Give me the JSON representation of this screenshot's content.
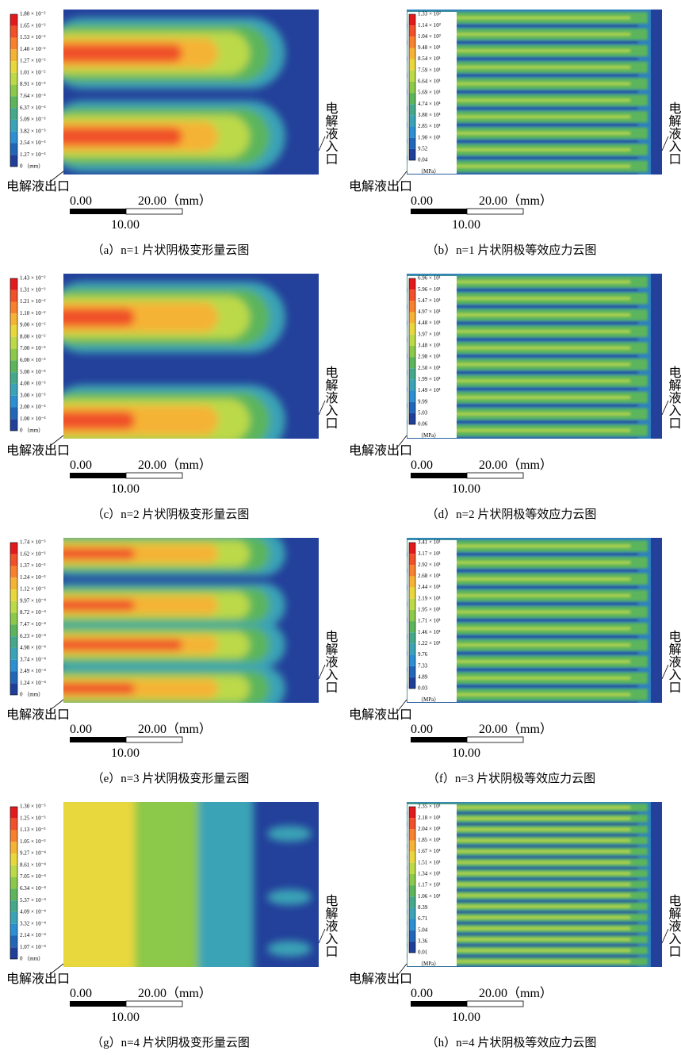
{
  "panels": [
    {
      "legend": [
        "1.80 × 10⁻²",
        "1.65 × 10⁻²",
        "1.53 × 10⁻²",
        "1.40 × 10⁻²",
        "1.27 × 10⁻²",
        "1.01 × 10⁻²",
        "8.91 × 10⁻³",
        "7.64 × 10⁻³",
        "6.37 × 10⁻³",
        "5.09 × 10⁻³",
        "3.82 × 10⁻³",
        "2.54 × 10⁻³",
        "1.27 × 10⁻³",
        "0 （mm）"
      ],
      "outlet": "电解液出口",
      "inlet": "电解液入口",
      "scale_start": "0.00",
      "scale_end": "20.00（mm）",
      "scale_mid": "10.00",
      "caption": "（a）n=1 片状阴极变形量云图"
    },
    {
      "legend": [
        "1.33 × 10²",
        "1.14 × 10²",
        "1.04 × 10²",
        "9.48 × 10¹",
        "8.54 × 10¹",
        "7.59 × 10¹",
        "6.64 × 10¹",
        "5.69 × 10¹",
        "4.74 × 10¹",
        "3.80 × 10¹",
        "2.85 × 10¹",
        "1.90 × 10¹",
        "9.52",
        "0.04",
        "（MPa）"
      ],
      "outlet": "电解液出口",
      "inlet": "电解液入口",
      "scale_start": "0.00",
      "scale_end": "20.00（mm）",
      "scale_mid": "10.00",
      "caption": "（b）n=1 片状阴极等效应力云图"
    },
    {
      "legend": [
        "1.43 × 10⁻²",
        "1.31 × 10⁻²",
        "1.21 × 10⁻²",
        "1.10 × 10⁻²",
        "9.00 × 10⁻²",
        "8.00 × 10⁻²",
        "7.00 × 10⁻³",
        "6.00 × 10⁻³",
        "5.00 × 10⁻³",
        "4.00 × 10⁻³",
        "3.00 × 10⁻³",
        "2.00 × 10⁻³",
        "1.00 × 10⁻³",
        "0 （mm）"
      ],
      "outlet": "电解液出口",
      "inlet": "电解液入口",
      "scale_start": "0.00",
      "scale_end": "20.00（mm）",
      "scale_mid": "10.00",
      "caption": "（c）n=2 片状阴极变形量云图"
    },
    {
      "legend": [
        "6.96 × 10¹",
        "5.96 × 10¹",
        "5.47 × 10¹",
        "4.97 × 10¹",
        "4.48 × 10¹",
        "3.97 × 10¹",
        "3.48 × 10¹",
        "2.98 × 10¹",
        "2.50 × 10¹",
        "1.99 × 10¹",
        "1.49 × 10¹",
        "9.99",
        "5.03",
        "0.06",
        "（MPa）"
      ],
      "outlet": "电解液出口",
      "inlet": "电解液入口",
      "scale_start": "0.00",
      "scale_end": "20.00（mm）",
      "scale_mid": "10.00",
      "caption": "（d）n=2 片状阴极等效应力云图"
    },
    {
      "legend": [
        "1.74 × 10⁻³",
        "1.62 × 10⁻³",
        "1.37 × 10⁻³",
        "1.24 × 10⁻³",
        "1.12 × 10⁻³",
        "9.97 × 10⁻⁴",
        "8.72 × 10⁻⁴",
        "7.47 × 10⁻⁴",
        "6.23 × 10⁻⁴",
        "4.98 × 10⁻⁴",
        "3.74 × 10⁻⁴",
        "2.49 × 10⁻⁴",
        "1.24 × 10⁻⁴",
        "0 （mm）"
      ],
      "outlet": "电解液出口",
      "inlet": "电解液入口",
      "scale_start": "0.00",
      "scale_end": "20.00（mm）",
      "scale_mid": "10.00",
      "caption": "（e）n=3 片状阴极变形量云图"
    },
    {
      "legend": [
        "3.41 × 10¹",
        "3.17 × 10¹",
        "2.92 × 10¹",
        "2.68 × 10¹",
        "2.44 × 10¹",
        "2.19 × 10¹",
        "1.95 × 10¹",
        "1.71 × 10¹",
        "1.46 × 10¹",
        "1.22 × 10¹",
        "9.76",
        "7.33",
        "4.89",
        "0.03",
        "（MPa）"
      ],
      "outlet": "电解液出口",
      "inlet": "电解液入口",
      "scale_start": "0.00",
      "scale_end": "20.00（mm）",
      "scale_mid": "10.00",
      "caption": "（f）n=3 片状阴极等效应力云图"
    },
    {
      "legend": [
        "1.30 × 10⁻³",
        "1.25 × 10⁻³",
        "1.13 × 10⁻³",
        "1.05 × 10⁻³",
        "9.27 × 10⁻⁴",
        "8.61 × 10⁻⁴",
        "7.05 × 10⁻⁴",
        "6.34 × 10⁻⁴",
        "5.37 × 10⁻⁴",
        "4.09 × 10⁻⁴",
        "3.32 × 10⁻⁴",
        "2.14 × 10⁻⁴",
        "1.07 × 10⁻⁴",
        "0 （mm）"
      ],
      "outlet": "电解液出口",
      "inlet": "电解液入口",
      "scale_start": "0.00",
      "scale_end": "20.00（mm）",
      "scale_mid": "10.00",
      "caption": "（g）n=4 片状阴极变形量云图"
    },
    {
      "legend": [
        "2.35 × 10¹",
        "2.18 × 10¹",
        "2.04 × 10¹",
        "1.85 × 10¹",
        "1.67 × 10¹",
        "1.51 × 10¹",
        "1.34 × 10¹",
        "1.17 × 10¹",
        "1.06 × 10¹",
        "8.39",
        "6.71",
        "5.04",
        "3.36",
        "0.01",
        "（MPa）"
      ],
      "outlet": "电解液出口",
      "inlet": "电解液入口",
      "scale_start": "0.00",
      "scale_end": "20.00（mm）",
      "scale_mid": "10.00",
      "caption": "（h）n=4 片状阴极等效应力云图"
    }
  ]
}
